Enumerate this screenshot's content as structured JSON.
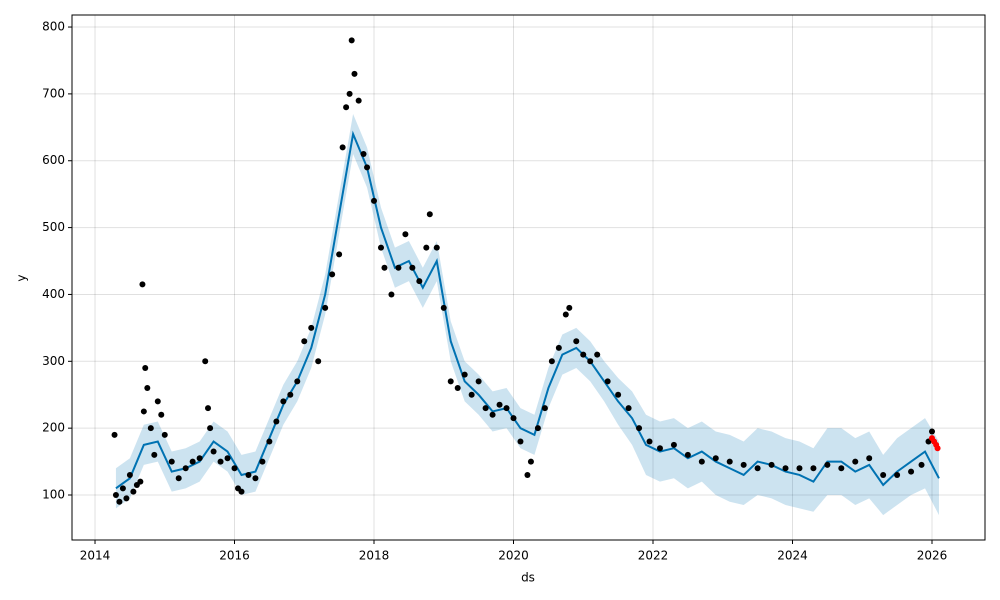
{
  "chart_data": {
    "type": "forecast",
    "xlabel": "ds",
    "ylabel": "y",
    "xlim": [
      2013.67,
      2026.76
    ],
    "ylim": [
      32.7,
      818
    ],
    "xticks": [
      2014,
      2016,
      2018,
      2020,
      2022,
      2024,
      2026
    ],
    "yticks": [
      100,
      200,
      300,
      400,
      500,
      600,
      700,
      800
    ],
    "grid": true,
    "forecast": {
      "color": "#0072B2",
      "x": [
        2014.3,
        2014.5,
        2014.7,
        2014.9,
        2015.1,
        2015.3,
        2015.5,
        2015.7,
        2015.9,
        2016.1,
        2016.3,
        2016.5,
        2016.7,
        2016.9,
        2017.1,
        2017.3,
        2017.5,
        2017.7,
        2017.9,
        2018.1,
        2018.3,
        2018.5,
        2018.7,
        2018.9,
        2019.1,
        2019.3,
        2019.5,
        2019.7,
        2019.9,
        2020.1,
        2020.3,
        2020.5,
        2020.7,
        2020.9,
        2021.1,
        2021.3,
        2021.5,
        2021.7,
        2021.9,
        2022.1,
        2022.3,
        2022.5,
        2022.7,
        2022.9,
        2023.1,
        2023.3,
        2023.5,
        2023.7,
        2023.9,
        2024.1,
        2024.3,
        2024.5,
        2024.7,
        2024.9,
        2025.1,
        2025.3,
        2025.5,
        2025.7,
        2025.9,
        2026.1
      ],
      "yhat": [
        110,
        125,
        175,
        180,
        135,
        140,
        150,
        180,
        165,
        130,
        135,
        185,
        235,
        270,
        320,
        400,
        520,
        640,
        590,
        500,
        440,
        450,
        410,
        450,
        330,
        270,
        250,
        225,
        230,
        200,
        190,
        260,
        310,
        320,
        300,
        270,
        240,
        215,
        175,
        165,
        170,
        155,
        165,
        150,
        140,
        130,
        150,
        145,
        135,
        130,
        120,
        150,
        150,
        135,
        145,
        115,
        135,
        150,
        165,
        125
      ],
      "yhat_lower": [
        80,
        95,
        145,
        150,
        105,
        110,
        120,
        150,
        135,
        100,
        105,
        155,
        205,
        240,
        290,
        370,
        490,
        610,
        560,
        470,
        410,
        420,
        380,
        420,
        300,
        240,
        220,
        195,
        200,
        170,
        160,
        230,
        280,
        290,
        270,
        240,
        205,
        175,
        130,
        120,
        125,
        110,
        120,
        100,
        90,
        85,
        100,
        95,
        85,
        80,
        75,
        100,
        100,
        85,
        95,
        70,
        85,
        100,
        110,
        70
      ],
      "yhat_upper": [
        140,
        155,
        205,
        210,
        165,
        170,
        180,
        210,
        195,
        160,
        165,
        215,
        265,
        300,
        350,
        430,
        550,
        670,
        620,
        530,
        470,
        480,
        440,
        480,
        360,
        300,
        280,
        255,
        260,
        230,
        220,
        290,
        340,
        350,
        330,
        300,
        275,
        255,
        220,
        210,
        215,
        200,
        210,
        195,
        190,
        180,
        200,
        195,
        185,
        180,
        170,
        200,
        200,
        185,
        195,
        160,
        185,
        200,
        215,
        180
      ]
    },
    "observed": {
      "color": "#000000",
      "x": [
        2014.28,
        2014.3,
        2014.35,
        2014.4,
        2014.45,
        2014.5,
        2014.55,
        2014.6,
        2014.65,
        2014.68,
        2014.7,
        2014.72,
        2014.75,
        2014.8,
        2014.85,
        2014.9,
        2014.95,
        2015.0,
        2015.1,
        2015.2,
        2015.3,
        2015.4,
        2015.5,
        2015.58,
        2015.62,
        2015.65,
        2015.7,
        2015.8,
        2015.9,
        2016.0,
        2016.05,
        2016.1,
        2016.2,
        2016.3,
        2016.4,
        2016.5,
        2016.6,
        2016.7,
        2016.8,
        2016.9,
        2017.0,
        2017.1,
        2017.2,
        2017.3,
        2017.4,
        2017.5,
        2017.55,
        2017.6,
        2017.65,
        2017.68,
        2017.72,
        2017.78,
        2017.85,
        2017.9,
        2018.0,
        2018.1,
        2018.15,
        2018.25,
        2018.35,
        2018.45,
        2018.55,
        2018.65,
        2018.75,
        2018.8,
        2018.9,
        2019.0,
        2019.1,
        2019.2,
        2019.3,
        2019.4,
        2019.5,
        2019.6,
        2019.7,
        2019.8,
        2019.9,
        2020.0,
        2020.1,
        2020.2,
        2020.25,
        2020.35,
        2020.45,
        2020.55,
        2020.65,
        2020.75,
        2020.8,
        2020.9,
        2021.0,
        2021.1,
        2021.2,
        2021.35,
        2021.5,
        2021.65,
        2021.8,
        2021.95,
        2022.1,
        2022.3,
        2022.5,
        2022.7,
        2022.9,
        2023.1,
        2023.3,
        2023.5,
        2023.7,
        2023.9,
        2024.1,
        2024.3,
        2024.5,
        2024.7,
        2024.9,
        2025.1,
        2025.3,
        2025.5,
        2025.7,
        2025.85,
        2025.95,
        2026.0
      ],
      "y": [
        190,
        100,
        90,
        110,
        95,
        130,
        105,
        115,
        120,
        415,
        225,
        290,
        260,
        200,
        160,
        240,
        220,
        190,
        150,
        125,
        140,
        150,
        155,
        300,
        230,
        200,
        165,
        150,
        155,
        140,
        110,
        105,
        130,
        125,
        150,
        180,
        210,
        240,
        250,
        270,
        330,
        350,
        300,
        380,
        430,
        460,
        620,
        680,
        700,
        780,
        730,
        690,
        610,
        590,
        540,
        470,
        440,
        400,
        440,
        490,
        440,
        420,
        470,
        520,
        470,
        380,
        270,
        260,
        280,
        250,
        270,
        230,
        220,
        235,
        230,
        215,
        180,
        130,
        150,
        200,
        230,
        300,
        320,
        370,
        380,
        330,
        310,
        300,
        310,
        270,
        250,
        230,
        200,
        180,
        170,
        175,
        160,
        150,
        155,
        150,
        145,
        140,
        145,
        140,
        140,
        140,
        145,
        140,
        150,
        155,
        130,
        130,
        135,
        145,
        180,
        195
      ]
    },
    "recent": {
      "color": "#ff0000",
      "x": [
        2026.0,
        2026.03,
        2026.06,
        2026.08
      ],
      "y": [
        185,
        180,
        175,
        170
      ]
    }
  }
}
